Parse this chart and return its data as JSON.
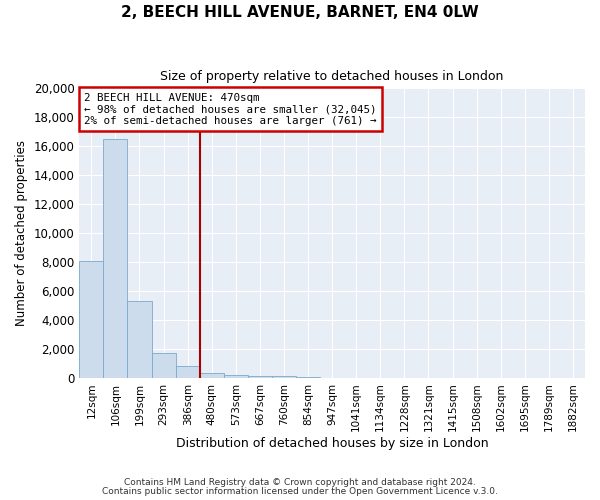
{
  "title": "2, BEECH HILL AVENUE, BARNET, EN4 0LW",
  "subtitle": "Size of property relative to detached houses in London",
  "xlabel": "Distribution of detached houses by size in London",
  "ylabel": "Number of detached properties",
  "bar_labels": [
    "12sqm",
    "106sqm",
    "199sqm",
    "293sqm",
    "386sqm",
    "480sqm",
    "573sqm",
    "667sqm",
    "760sqm",
    "854sqm",
    "947sqm",
    "1041sqm",
    "1134sqm",
    "1228sqm",
    "1321sqm",
    "1415sqm",
    "1508sqm",
    "1602sqm",
    "1695sqm",
    "1789sqm",
    "1882sqm"
  ],
  "bar_values": [
    8100,
    16500,
    5300,
    1750,
    800,
    350,
    200,
    150,
    100,
    75,
    0,
    0,
    0,
    0,
    0,
    0,
    0,
    0,
    0,
    0,
    0
  ],
  "bar_color": "#ccdcec",
  "bar_edge_color": "#7aaacb",
  "vline_x_index": 5,
  "vline_color": "#aa0000",
  "annotation_title": "2 BEECH HILL AVENUE: 470sqm",
  "annotation_line1": "← 98% of detached houses are smaller (32,045)",
  "annotation_line2": "2% of semi-detached houses are larger (761) →",
  "annotation_box_color": "#cc0000",
  "ylim": [
    0,
    20000
  ],
  "yticks": [
    0,
    2000,
    4000,
    6000,
    8000,
    10000,
    12000,
    14000,
    16000,
    18000,
    20000
  ],
  "footer1": "Contains HM Land Registry data © Crown copyright and database right 2024.",
  "footer2": "Contains public sector information licensed under the Open Government Licence v.3.0.",
  "bg_color": "#ffffff",
  "plot_bg_color": "#e8eef6",
  "grid_color": "#ffffff"
}
